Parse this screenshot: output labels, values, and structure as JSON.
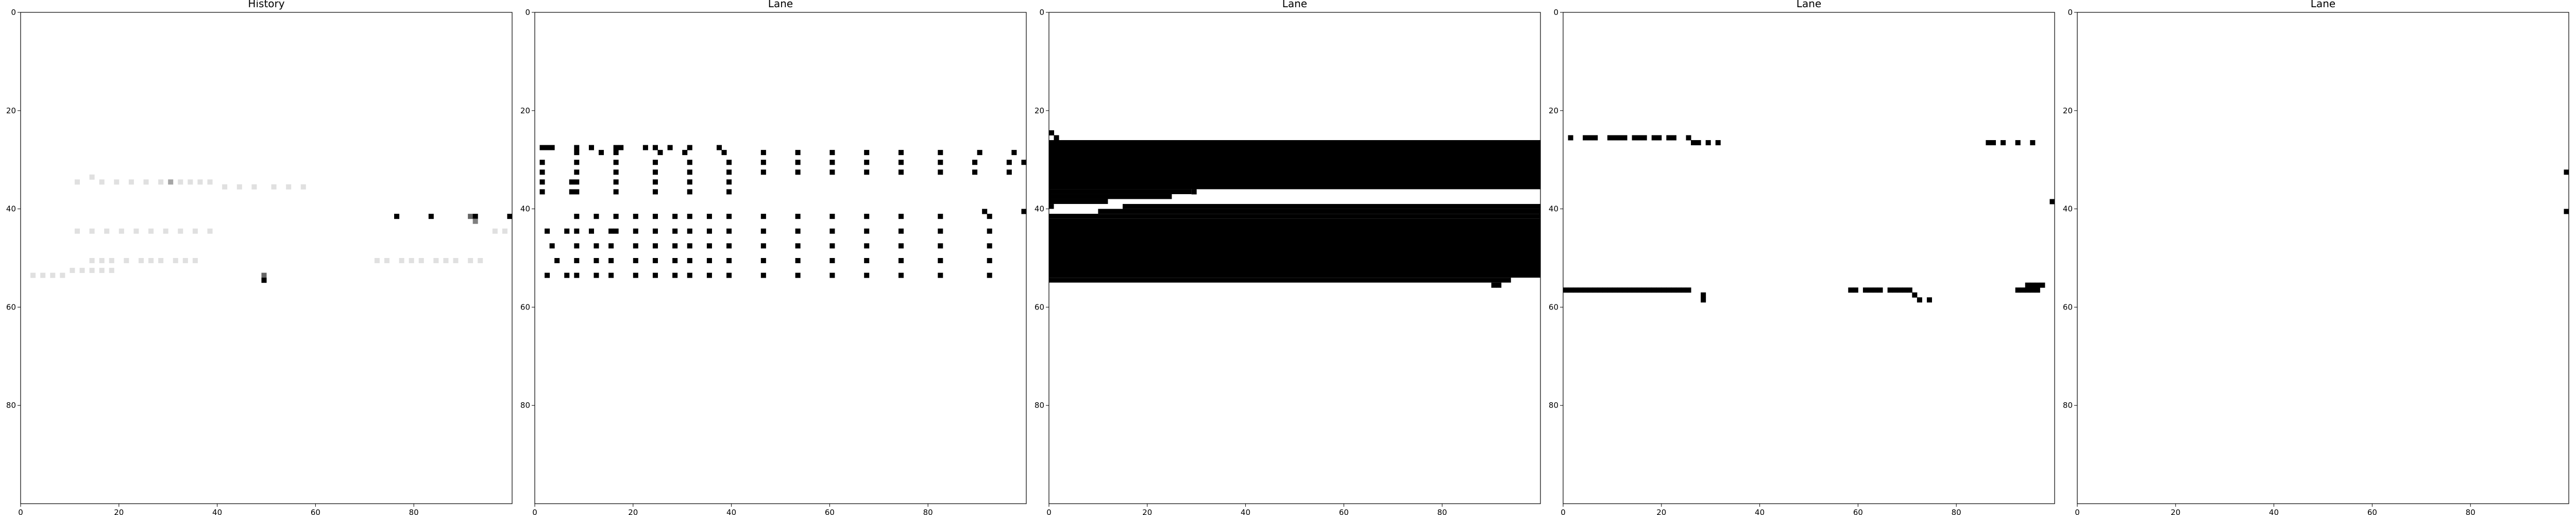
{
  "chart_data": [
    {
      "type": "heatmap",
      "title": "History",
      "xlim": [
        0,
        100
      ],
      "ylim": [
        100,
        0
      ],
      "xticks": [
        0,
        20,
        40,
        60,
        80
      ],
      "yticks": [
        0,
        20,
        40,
        60,
        80
      ],
      "cells": [
        {
          "x": 11,
          "y": 34,
          "v": 0.12
        },
        {
          "x": 14,
          "y": 33,
          "v": 0.12
        },
        {
          "x": 16,
          "y": 34,
          "v": 0.12
        },
        {
          "x": 19,
          "y": 34,
          "v": 0.12
        },
        {
          "x": 22,
          "y": 34,
          "v": 0.12
        },
        {
          "x": 25,
          "y": 34,
          "v": 0.12
        },
        {
          "x": 28,
          "y": 34,
          "v": 0.12
        },
        {
          "x": 30,
          "y": 34,
          "v": 0.35
        },
        {
          "x": 32,
          "y": 34,
          "v": 0.12
        },
        {
          "x": 34,
          "y": 34,
          "v": 0.12
        },
        {
          "x": 36,
          "y": 34,
          "v": 0.12
        },
        {
          "x": 38,
          "y": 34,
          "v": 0.12
        },
        {
          "x": 41,
          "y": 35,
          "v": 0.12
        },
        {
          "x": 44,
          "y": 35,
          "v": 0.12
        },
        {
          "x": 47,
          "y": 35,
          "v": 0.12
        },
        {
          "x": 51,
          "y": 35,
          "v": 0.12
        },
        {
          "x": 54,
          "y": 35,
          "v": 0.12
        },
        {
          "x": 57,
          "y": 35,
          "v": 0.12
        },
        {
          "x": 11,
          "y": 44,
          "v": 0.12
        },
        {
          "x": 14,
          "y": 44,
          "v": 0.12
        },
        {
          "x": 17,
          "y": 44,
          "v": 0.12
        },
        {
          "x": 20,
          "y": 44,
          "v": 0.12
        },
        {
          "x": 23,
          "y": 44,
          "v": 0.12
        },
        {
          "x": 26,
          "y": 44,
          "v": 0.12
        },
        {
          "x": 29,
          "y": 44,
          "v": 0.12
        },
        {
          "x": 32,
          "y": 44,
          "v": 0.12
        },
        {
          "x": 35,
          "y": 44,
          "v": 0.12
        },
        {
          "x": 38,
          "y": 44,
          "v": 0.12
        },
        {
          "x": 14,
          "y": 50,
          "v": 0.12
        },
        {
          "x": 16,
          "y": 50,
          "v": 0.12
        },
        {
          "x": 18,
          "y": 50,
          "v": 0.12
        },
        {
          "x": 21,
          "y": 50,
          "v": 0.12
        },
        {
          "x": 24,
          "y": 50,
          "v": 0.12
        },
        {
          "x": 26,
          "y": 50,
          "v": 0.12
        },
        {
          "x": 28,
          "y": 50,
          "v": 0.12
        },
        {
          "x": 31,
          "y": 50,
          "v": 0.12
        },
        {
          "x": 33,
          "y": 50,
          "v": 0.12
        },
        {
          "x": 35,
          "y": 50,
          "v": 0.12
        },
        {
          "x": 10,
          "y": 52,
          "v": 0.12
        },
        {
          "x": 12,
          "y": 52,
          "v": 0.12
        },
        {
          "x": 14,
          "y": 52,
          "v": 0.12
        },
        {
          "x": 16,
          "y": 52,
          "v": 0.12
        },
        {
          "x": 18,
          "y": 52,
          "v": 0.12
        },
        {
          "x": 2,
          "y": 53,
          "v": 0.12
        },
        {
          "x": 4,
          "y": 53,
          "v": 0.12
        },
        {
          "x": 6,
          "y": 53,
          "v": 0.12
        },
        {
          "x": 8,
          "y": 53,
          "v": 0.12
        },
        {
          "x": 72,
          "y": 50,
          "v": 0.12
        },
        {
          "x": 74,
          "y": 50,
          "v": 0.12
        },
        {
          "x": 77,
          "y": 50,
          "v": 0.12
        },
        {
          "x": 79,
          "y": 50,
          "v": 0.12
        },
        {
          "x": 81,
          "y": 50,
          "v": 0.12
        },
        {
          "x": 84,
          "y": 50,
          "v": 0.12
        },
        {
          "x": 86,
          "y": 50,
          "v": 0.12
        },
        {
          "x": 88,
          "y": 50,
          "v": 0.12
        },
        {
          "x": 91,
          "y": 50,
          "v": 0.12
        },
        {
          "x": 93,
          "y": 50,
          "v": 0.12
        },
        {
          "x": 96,
          "y": 44,
          "v": 0.12
        },
        {
          "x": 98,
          "y": 44,
          "v": 0.12
        },
        {
          "x": 49,
          "y": 53,
          "v": 0.6
        },
        {
          "x": 49,
          "y": 54,
          "v": 1
        },
        {
          "x": 76,
          "y": 41,
          "v": 1
        },
        {
          "x": 83,
          "y": 41,
          "v": 1
        },
        {
          "x": 91,
          "y": 41,
          "v": 0.6
        },
        {
          "x": 92,
          "y": 41,
          "v": 1
        },
        {
          "x": 92,
          "y": 42,
          "v": 0.5
        },
        {
          "x": 99,
          "y": 41,
          "v": 1
        }
      ]
    },
    {
      "type": "heatmap",
      "title": "Lane",
      "xlim": [
        0,
        100
      ],
      "ylim": [
        100,
        0
      ],
      "xticks": [
        0,
        20,
        40,
        60,
        80
      ],
      "yticks": [
        0,
        20,
        40,
        60,
        80
      ],
      "row_sets": [
        {
          "y": 27,
          "w": 3,
          "xs": [
            1
          ]
        },
        {
          "y": 27,
          "xs": [
            8,
            11,
            16,
            17,
            22,
            24,
            27,
            31,
            37
          ]
        },
        {
          "y": 28,
          "xs": [
            8,
            13,
            16,
            25,
            30,
            38,
            46,
            53,
            60,
            67,
            74,
            82,
            90,
            97
          ]
        },
        {
          "y": 30,
          "xs": [
            1,
            8,
            16,
            24,
            31,
            39,
            46,
            53,
            60,
            67,
            74,
            82,
            89,
            96,
            99
          ]
        },
        {
          "y": 32,
          "xs": [
            1,
            8,
            16,
            24,
            31,
            39,
            46,
            53,
            60,
            67,
            74,
            82,
            89,
            96
          ]
        },
        {
          "y": 34,
          "xs": [
            1,
            7,
            8,
            16,
            24,
            31,
            39
          ]
        },
        {
          "y": 36,
          "xs": [
            1,
            7,
            8,
            16,
            24,
            31,
            39
          ]
        },
        {
          "y": 40,
          "xs": [
            91
          ]
        },
        {
          "y": 40,
          "xs": [
            99
          ]
        },
        {
          "y": 41,
          "xs": [
            8,
            12,
            16,
            20,
            24,
            28,
            31,
            35,
            39,
            46,
            53,
            60,
            67,
            74,
            82,
            92
          ]
        },
        {
          "y": 44,
          "xs": [
            2,
            6,
            8,
            11,
            15,
            16,
            20,
            24,
            28,
            31,
            35,
            39,
            46,
            53,
            60,
            67,
            74,
            82,
            92
          ]
        },
        {
          "y": 47,
          "xs": [
            3,
            8,
            12,
            15,
            20,
            24,
            28,
            31,
            35,
            39,
            46,
            53,
            60,
            67,
            74,
            82,
            92
          ]
        },
        {
          "y": 50,
          "xs": [
            4,
            8,
            12,
            15,
            20,
            24,
            28,
            31,
            35,
            39,
            46,
            53,
            60,
            67,
            74,
            82,
            92
          ]
        },
        {
          "y": 53,
          "xs": [
            2,
            6,
            8,
            12,
            15,
            20,
            24,
            28,
            31,
            35,
            39,
            46,
            53,
            60,
            67,
            74,
            82,
            92
          ]
        }
      ]
    },
    {
      "type": "heatmap",
      "title": "Lane",
      "xlim": [
        0,
        100
      ],
      "ylim": [
        100,
        0
      ],
      "xticks": [
        0,
        20,
        40,
        60,
        80
      ],
      "yticks": [
        0,
        20,
        40,
        60,
        80
      ],
      "cells": [
        {
          "x": 0,
          "y": 24,
          "v": 1
        },
        {
          "x": 1,
          "y": 25,
          "v": 1
        },
        {
          "x": 90,
          "y": 55,
          "v": 1
        },
        {
          "x": 91,
          "y": 55,
          "v": 1
        },
        {
          "x": 29,
          "y": 36,
          "v": 1
        }
      ],
      "ranges": [
        {
          "y0": 26,
          "y1": 36,
          "x0": 0,
          "x1": 100
        },
        {
          "y0": 36,
          "y1": 37,
          "x0": 0,
          "x1": 29
        },
        {
          "y0": 37,
          "y1": 38,
          "x0": 0,
          "x1": 25
        },
        {
          "y0": 38,
          "y1": 39,
          "x0": 0,
          "x1": 12
        },
        {
          "y0": 39,
          "y1": 40,
          "x0": 0,
          "x1": 1
        },
        {
          "y0": 39,
          "y1": 40,
          "x0": 15,
          "x1": 100
        },
        {
          "y0": 40,
          "y1": 41,
          "x0": 10,
          "x1": 100
        },
        {
          "y0": 41,
          "y1": 42,
          "x0": 0,
          "x1": 100
        },
        {
          "y0": 42,
          "y1": 54,
          "x0": 0,
          "x1": 100
        },
        {
          "y0": 54,
          "y1": 55,
          "x0": 0,
          "x1": 94
        }
      ]
    },
    {
      "type": "heatmap",
      "title": "Lane",
      "xlim": [
        0,
        100
      ],
      "ylim": [
        100,
        0
      ],
      "xticks": [
        0,
        20,
        40,
        60,
        80
      ],
      "yticks": [
        0,
        20,
        40,
        60,
        80
      ],
      "row_sets": [
        {
          "y": 25,
          "xs": [
            1,
            4,
            5,
            6,
            9,
            10,
            11,
            12,
            14,
            15,
            16,
            18,
            19,
            21,
            22,
            25
          ]
        },
        {
          "y": 26,
          "xs": [
            26,
            27,
            29,
            31,
            86,
            87,
            89,
            92,
            95
          ]
        },
        {
          "y": 38,
          "xs": [
            99
          ]
        },
        {
          "y": 56,
          "xs": [
            0,
            1,
            2,
            3,
            4,
            5,
            6,
            7,
            8,
            9,
            10,
            11,
            12,
            13,
            14,
            15,
            16,
            17,
            18,
            19,
            20,
            21,
            22,
            23,
            24,
            25,
            58,
            59,
            61,
            62,
            63,
            64,
            66,
            67,
            68,
            69,
            70,
            92,
            93,
            94,
            95,
            96
          ]
        },
        {
          "y": 57,
          "xs": [
            28,
            71
          ]
        },
        {
          "y": 58,
          "xs": [
            28,
            72,
            74
          ]
        },
        {
          "y": 55,
          "xs": [
            94,
            95,
            96,
            97
          ]
        }
      ]
    },
    {
      "type": "heatmap",
      "title": "Lane",
      "xlim": [
        0,
        100
      ],
      "ylim": [
        100,
        0
      ],
      "xticks": [
        0,
        20,
        40,
        60,
        80
      ],
      "yticks": [
        0,
        20,
        40,
        60,
        80
      ],
      "cells": [
        {
          "x": 99,
          "y": 32,
          "v": 1
        },
        {
          "x": 99,
          "y": 40,
          "v": 1
        }
      ]
    }
  ]
}
